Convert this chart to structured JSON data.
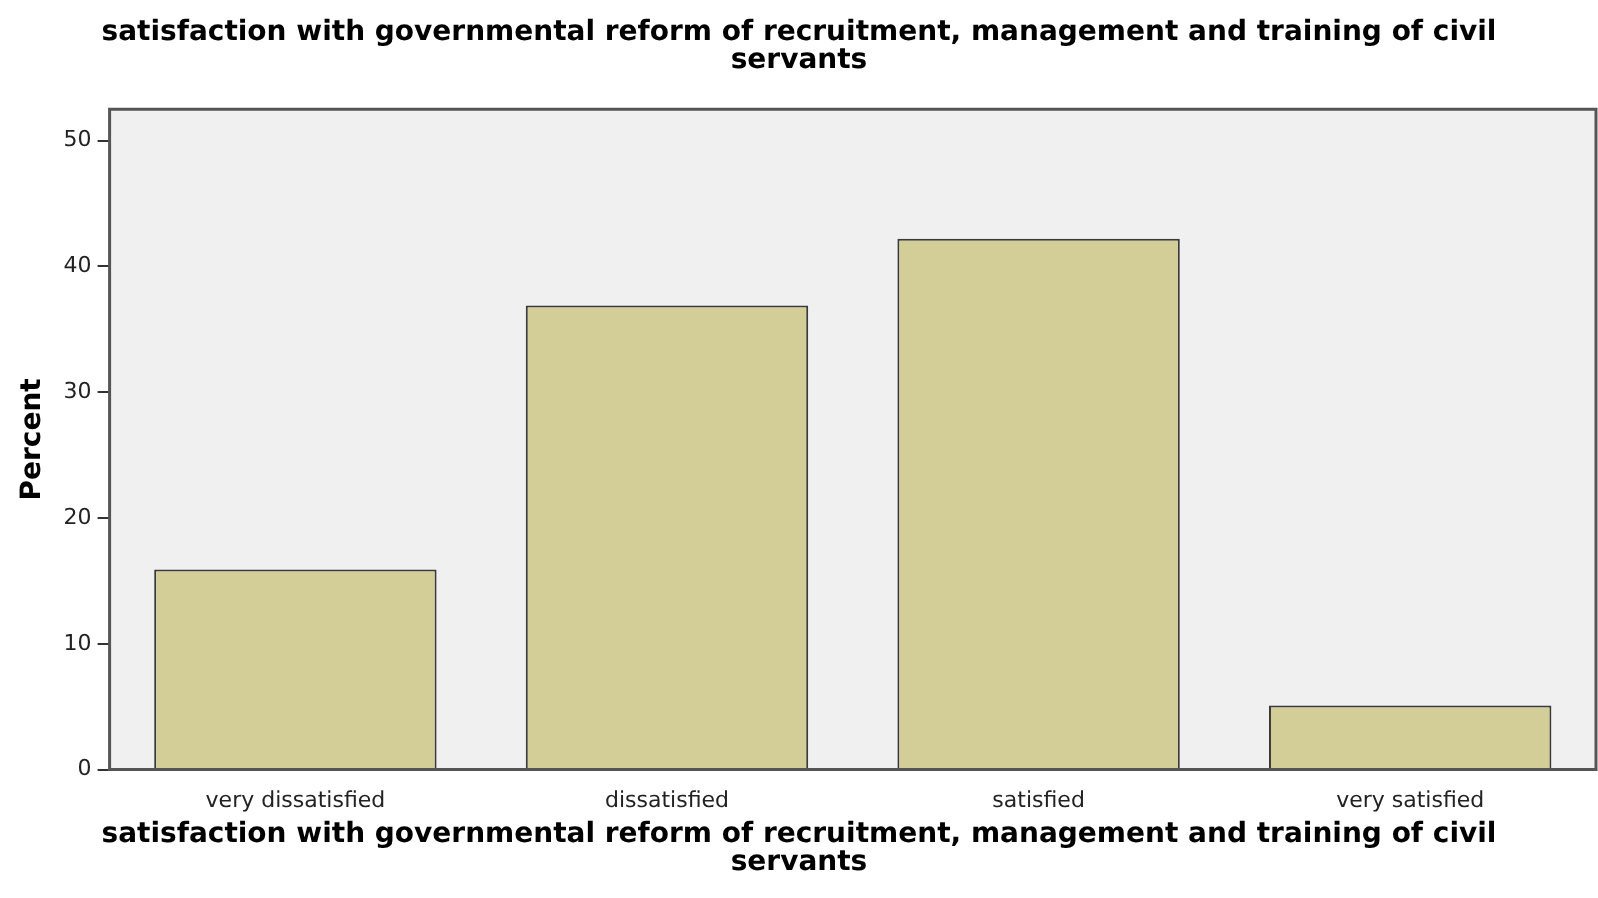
{
  "chart_data": {
    "type": "bar",
    "title": "satisfaction with governmental reform of recruitment, management and training of civil servants",
    "xlabel": "satisfaction with governmental reform of recruitment, management and training of civil servants",
    "ylabel": "Percent",
    "categories": [
      "very dissatisfied",
      "dissatisfied",
      "satisfied",
      "very satisfied"
    ],
    "values": [
      15.9,
      36.9,
      42.2,
      5.1
    ],
    "color": "#d3ce97",
    "ylim": [
      0,
      52.5
    ],
    "yticks": [
      0,
      10,
      20,
      30,
      40,
      50
    ],
    "grid": false,
    "legend": false
  }
}
